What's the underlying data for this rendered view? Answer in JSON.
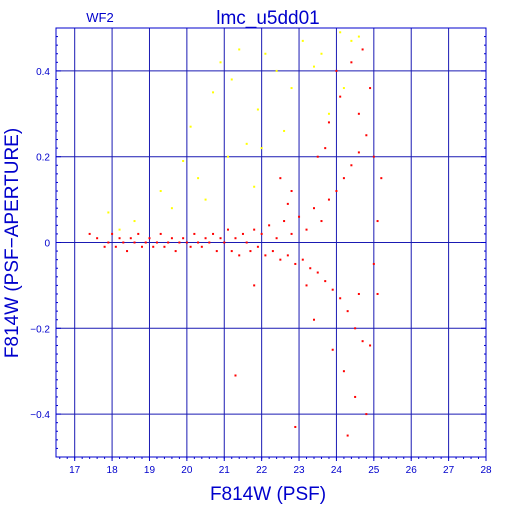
{
  "chart_data": {
    "type": "scatter",
    "title": "lmc_u5dd01",
    "chip_label": "WF2",
    "xlabel": "F814W (PSF)",
    "ylabel": "F814W (PSF−APERTURE)",
    "xlim": [
      16.5,
      28
    ],
    "ylim": [
      -0.5,
      0.5
    ],
    "x_ticks": [
      17,
      18,
      19,
      20,
      21,
      22,
      23,
      24,
      25,
      26,
      27,
      28
    ],
    "y_ticks": [
      -0.4,
      -0.2,
      0,
      0.2,
      0.4
    ],
    "x_tick_labels": [
      "17",
      "18",
      "19",
      "20",
      "21",
      "22",
      "23",
      "24",
      "25",
      "26",
      "27",
      "28"
    ],
    "y_tick_labels": [
      "−0.4",
      "−0.2",
      "0",
      "0.2",
      "0.4"
    ],
    "grid": true,
    "colors": {
      "axes": "#0000cc",
      "grid": "#1a1ab3",
      "primary": "#ff0000",
      "rejected": "#ffff00"
    },
    "series": [
      {
        "color": "#ff0000",
        "points": [
          [
            17.4,
            0.02
          ],
          [
            17.6,
            0.01
          ],
          [
            17.8,
            -0.01
          ],
          [
            17.9,
            0.0
          ],
          [
            18.0,
            0.02
          ],
          [
            18.1,
            -0.01
          ],
          [
            18.2,
            0.01
          ],
          [
            18.3,
            0.0
          ],
          [
            18.4,
            -0.02
          ],
          [
            18.5,
            0.01
          ],
          [
            18.6,
            0.0
          ],
          [
            18.7,
            0.02
          ],
          [
            18.8,
            -0.01
          ],
          [
            18.9,
            0.0
          ],
          [
            19.0,
            0.01
          ],
          [
            19.1,
            -0.01
          ],
          [
            19.2,
            0.0
          ],
          [
            19.3,
            0.02
          ],
          [
            19.4,
            -0.01
          ],
          [
            19.5,
            0.0
          ],
          [
            19.6,
            0.01
          ],
          [
            19.7,
            -0.02
          ],
          [
            19.8,
            0.0
          ],
          [
            19.9,
            0.01
          ],
          [
            20.0,
            0.0
          ],
          [
            20.1,
            -0.01
          ],
          [
            20.2,
            0.02
          ],
          [
            20.3,
            0.0
          ],
          [
            20.4,
            -0.01
          ],
          [
            20.5,
            0.01
          ],
          [
            20.6,
            0.0
          ],
          [
            20.7,
            0.02
          ],
          [
            20.8,
            -0.02
          ],
          [
            20.9,
            0.01
          ],
          [
            21.0,
            0.0
          ],
          [
            21.1,
            0.03
          ],
          [
            21.2,
            -0.02
          ],
          [
            21.3,
            0.01
          ],
          [
            21.4,
            -0.03
          ],
          [
            21.5,
            0.02
          ],
          [
            21.6,
            0.0
          ],
          [
            21.7,
            -0.02
          ],
          [
            21.8,
            0.03
          ],
          [
            21.9,
            -0.01
          ],
          [
            22.0,
            0.02
          ],
          [
            22.1,
            -0.03
          ],
          [
            22.2,
            0.04
          ],
          [
            22.3,
            -0.02
          ],
          [
            22.4,
            0.01
          ],
          [
            22.5,
            -0.04
          ],
          [
            22.6,
            0.05
          ],
          [
            22.7,
            -0.03
          ],
          [
            22.8,
            0.02
          ],
          [
            22.9,
            -0.05
          ],
          [
            23.0,
            0.06
          ],
          [
            23.1,
            -0.04
          ],
          [
            23.2,
            0.03
          ],
          [
            23.3,
            -0.06
          ],
          [
            23.4,
            0.08
          ],
          [
            23.5,
            -0.07
          ],
          [
            23.6,
            0.05
          ],
          [
            23.7,
            -0.09
          ],
          [
            23.8,
            0.1
          ],
          [
            23.9,
            -0.11
          ],
          [
            24.0,
            0.12
          ],
          [
            24.1,
            -0.13
          ],
          [
            24.2,
            0.15
          ],
          [
            24.3,
            -0.16
          ],
          [
            24.4,
            0.18
          ],
          [
            24.5,
            -0.2
          ],
          [
            24.6,
            0.21
          ],
          [
            24.7,
            -0.23
          ],
          [
            24.8,
            0.25
          ],
          [
            24.9,
            -0.24
          ],
          [
            25.0,
            0.2
          ],
          [
            25.1,
            -0.12
          ],
          [
            25.2,
            0.15
          ],
          [
            23.5,
            0.2
          ],
          [
            23.8,
            0.28
          ],
          [
            24.1,
            0.34
          ],
          [
            24.4,
            0.42
          ],
          [
            24.7,
            0.45
          ],
          [
            24.2,
            -0.3
          ],
          [
            24.5,
            -0.36
          ],
          [
            24.8,
            -0.4
          ],
          [
            24.3,
            -0.45
          ],
          [
            23.9,
            -0.25
          ],
          [
            23.4,
            -0.18
          ],
          [
            22.8,
            0.12
          ],
          [
            22.5,
            0.15
          ],
          [
            21.8,
            -0.1
          ],
          [
            21.3,
            -0.31
          ],
          [
            22.9,
            -0.43
          ],
          [
            24.6,
            0.3
          ],
          [
            24.9,
            0.36
          ],
          [
            24.0,
            0.4
          ],
          [
            23.7,
            0.22
          ],
          [
            25.0,
            -0.05
          ],
          [
            25.1,
            0.05
          ],
          [
            24.6,
            -0.12
          ],
          [
            23.2,
            -0.1
          ],
          [
            22.7,
            0.09
          ]
        ]
      },
      {
        "color": "#ffff00",
        "points": [
          [
            17.9,
            0.07
          ],
          [
            18.2,
            0.03
          ],
          [
            18.6,
            0.05
          ],
          [
            19.3,
            0.12
          ],
          [
            19.9,
            0.19
          ],
          [
            20.3,
            0.15
          ],
          [
            20.7,
            0.35
          ],
          [
            20.9,
            0.42
          ],
          [
            21.2,
            0.38
          ],
          [
            21.6,
            0.23
          ],
          [
            21.9,
            0.31
          ],
          [
            22.1,
            0.44
          ],
          [
            22.4,
            0.4
          ],
          [
            22.8,
            0.36
          ],
          [
            23.1,
            0.47
          ],
          [
            23.6,
            0.44
          ],
          [
            24.1,
            0.49
          ],
          [
            24.4,
            0.47
          ],
          [
            24.6,
            0.48
          ],
          [
            23.8,
            0.3
          ],
          [
            20.1,
            0.27
          ],
          [
            21.1,
            0.2
          ],
          [
            22.6,
            0.26
          ],
          [
            21.4,
            0.45
          ],
          [
            20.5,
            0.1
          ],
          [
            19.6,
            0.08
          ],
          [
            22.0,
            0.22
          ],
          [
            23.4,
            0.41
          ],
          [
            24.2,
            0.36
          ],
          [
            21.8,
            0.13
          ]
        ]
      }
    ]
  }
}
